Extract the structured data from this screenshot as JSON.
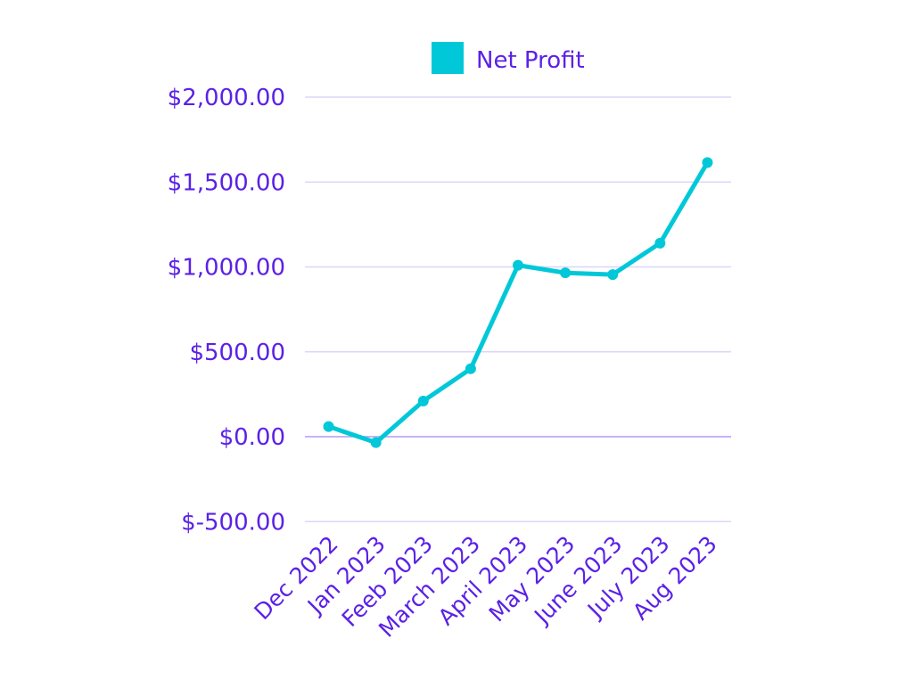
{
  "chart_data": {
    "type": "line",
    "title": "",
    "xlabel": "",
    "ylabel": "",
    "categories": [
      "Dec 2022",
      "Jan 2023",
      "Feeb 2023",
      "March 2023",
      "April 2023",
      "May 2023",
      "June 2023",
      "July 2023",
      "Aug 2023"
    ],
    "series": [
      {
        "name": "Net Profit",
        "values": [
          60,
          -35,
          210,
          400,
          1010,
          965,
          955,
          1140,
          1615
        ]
      }
    ],
    "ylim": [
      -500,
      2000
    ],
    "yticks": [
      -500,
      0,
      500,
      1000,
      1500,
      2000
    ],
    "ytick_labels": [
      "$-500.00",
      "$0.00",
      "$500.00",
      "$1,000.00",
      "$1,500.00",
      "$2,000.00"
    ],
    "grid": true,
    "legend_position": "top",
    "colors": {
      "series": "#00c8d8",
      "text": "#5b21e6",
      "grid": "#ddd6fa",
      "zero_line": "#b39af2"
    }
  }
}
